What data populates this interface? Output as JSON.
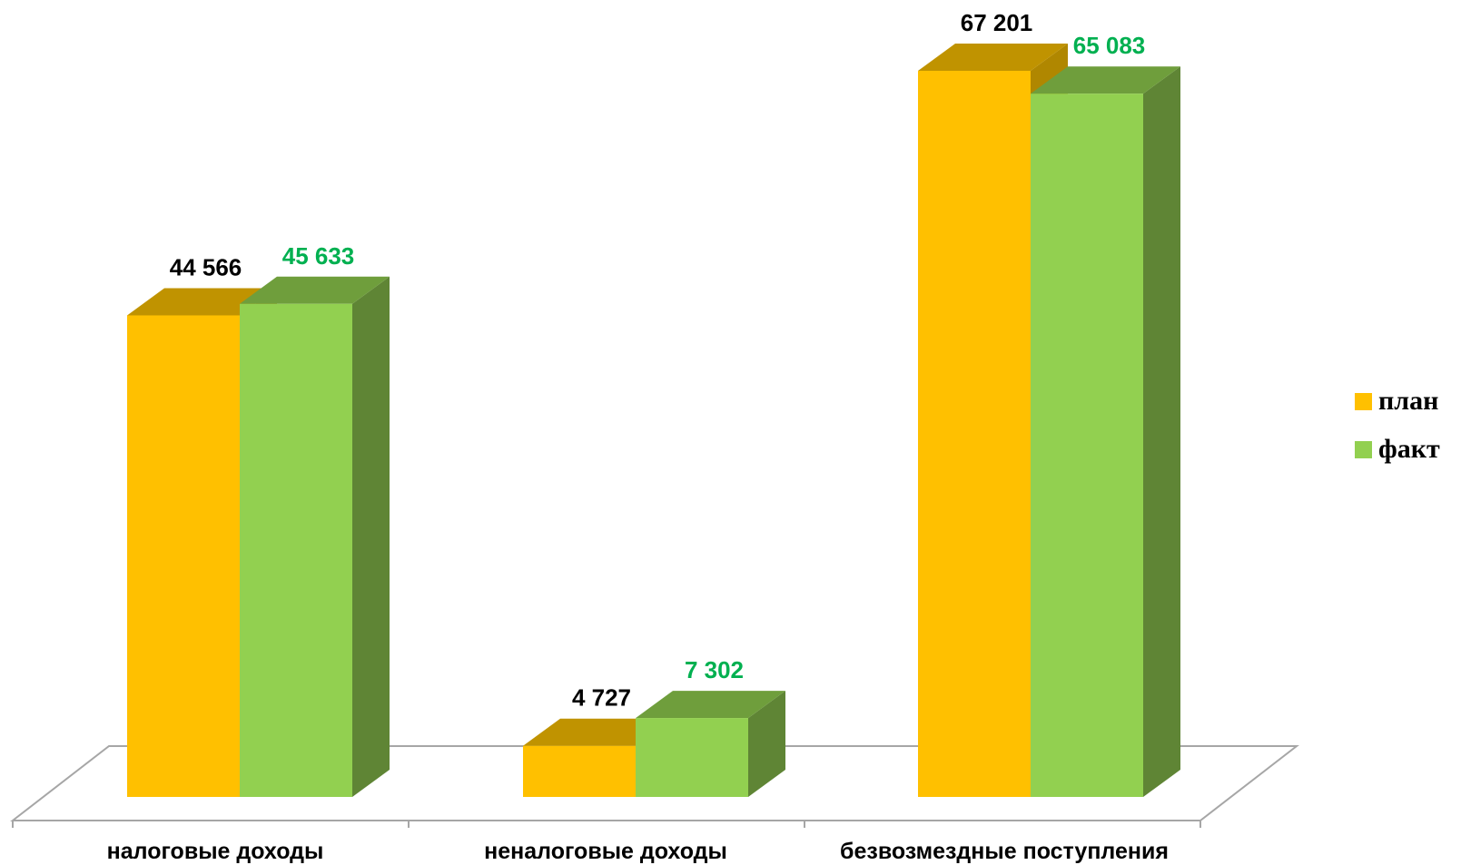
{
  "chart_data": {
    "type": "bar",
    "categories": [
      "налоговые доходы",
      "неналоговые доходы",
      "безвозмездные поступления"
    ],
    "series": [
      {
        "name": "план",
        "values": [
          44566,
          4727,
          67201
        ],
        "labels": [
          "44 566",
          "4 727",
          "67 201"
        ],
        "color": "#ffc000",
        "top_color": "#c09300",
        "side_color": "#b08700",
        "label_color": "#000000"
      },
      {
        "name": "факт",
        "values": [
          45633,
          7302,
          65083
        ],
        "labels": [
          "45 633",
          "7 302",
          "65 083"
        ],
        "color": "#92d050",
        "top_color": "#6f9e3c",
        "side_color": "#5f8535",
        "label_color": "#00b050"
      }
    ],
    "ylim": [
      0,
      67201
    ],
    "grid": false,
    "legend_position": "right",
    "style": "3d-clustered-column"
  }
}
